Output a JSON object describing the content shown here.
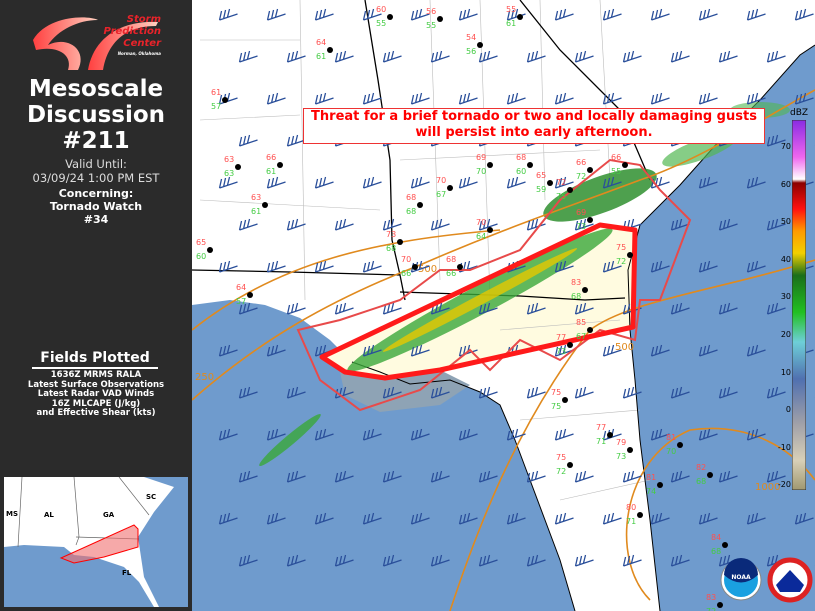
{
  "logo": {
    "line1": "Storm",
    "line2": "Prediction",
    "line3": "Center",
    "line4": "Norman, Oklahoma"
  },
  "header": {
    "title_line1": "Mesoscale",
    "title_line2": "Discussion",
    "number": "#211"
  },
  "valid": {
    "label": "Valid Until:",
    "value": "03/09/24 1:00 PM EST"
  },
  "concerning": {
    "label": "Concerning:",
    "line1": "Tornado Watch",
    "line2": "#34"
  },
  "fields": {
    "heading": "Fields Plotted",
    "items": [
      "1636Z MRMS RALA",
      "Latest Surface Observations",
      "Latest Radar VAD Winds",
      "16Z MLCAPE (J/kg)",
      "and Effective Shear (kts)"
    ]
  },
  "inset": {
    "states": [
      "MS",
      "AL",
      "GA",
      "SC",
      "FL"
    ]
  },
  "banner": {
    "line1": "Threat for a brief tornado or two and locally damaging gusts",
    "line2": "will persist into early afternoon."
  },
  "colorbar": {
    "unit": "dBZ",
    "ticks": [
      "70",
      "60",
      "50",
      "40",
      "30",
      "20",
      "10",
      "0",
      "-10",
      "-20"
    ]
  },
  "contour_labels": [
    "500",
    "250",
    "500",
    "1000"
  ],
  "stations": {
    "temperatures": [
      "60",
      "56",
      "54",
      "55",
      "64",
      "61",
      "63",
      "66",
      "63",
      "65",
      "68",
      "70",
      "70",
      "73",
      "70",
      "68",
      "69",
      "72",
      "66",
      "69",
      "75",
      "77",
      "75",
      "75",
      "77",
      "79",
      "81",
      "83",
      "85",
      "81",
      "80",
      "82",
      "84",
      "83",
      "64",
      "68",
      "65",
      "66"
    ],
    "dewpoints": [
      "55",
      "55",
      "56",
      "61",
      "61",
      "57",
      "63",
      "61",
      "61",
      "60",
      "68",
      "67",
      "64",
      "68",
      "66",
      "66",
      "70",
      "75",
      "72",
      "73",
      "72",
      "73",
      "75",
      "72",
      "71",
      "73",
      "74",
      "68",
      "67",
      "70",
      "71",
      "68",
      "68",
      "72",
      "57",
      "60",
      "59",
      "55"
    ]
  },
  "logos": {
    "noaa": "NOAA",
    "nws": "NATIONAL WEATHER SERVICE"
  },
  "colors": {
    "md_outline": "#ff1a1a",
    "watch_outline": "#e84a4a",
    "ocean": "#6f9bcd",
    "cape_contour": "#e08a1e",
    "barb": "#2a4f9a",
    "temp": "#ff5050",
    "dew": "#44cc44"
  }
}
